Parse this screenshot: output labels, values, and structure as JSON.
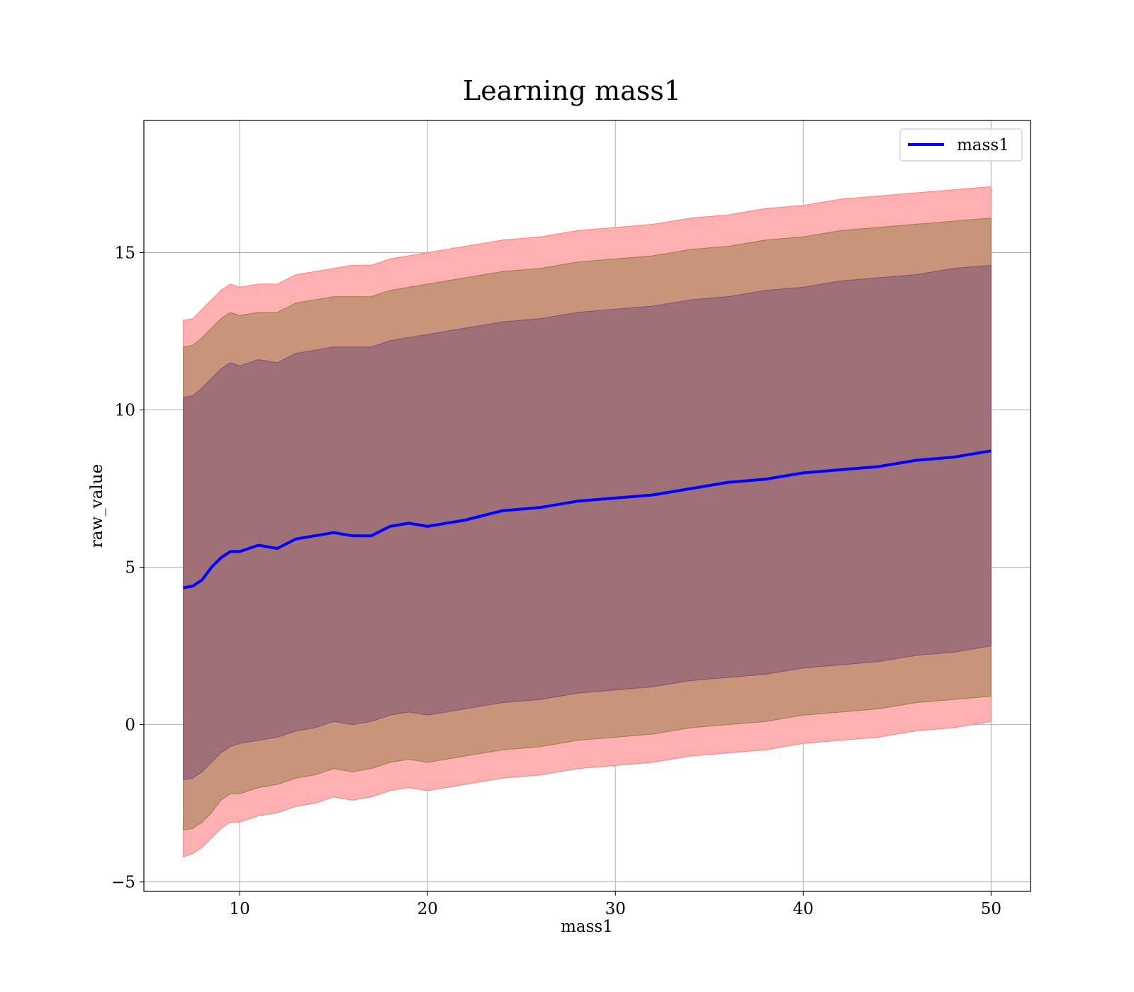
{
  "chart_data": {
    "type": "line",
    "title": "Learning mass1",
    "xlabel": "mass1",
    "ylabel": "raw_value",
    "xlim": [
      4.9,
      52.1
    ],
    "ylim": [
      -5.3,
      19.2
    ],
    "xticks": [
      10,
      20,
      30,
      40,
      50
    ],
    "yticks": [
      -5,
      0,
      5,
      10,
      15
    ],
    "xtick_labels": [
      "10",
      "20",
      "30",
      "40",
      "50"
    ],
    "ytick_labels": [
      "−5",
      "0",
      "5",
      "10",
      "15"
    ],
    "grid": true,
    "legend": {
      "placement": "top-right",
      "entries": [
        "mass1"
      ]
    },
    "colors": {
      "line": "#0000ff",
      "band_outer": "#ff0000",
      "band_middle": "#8b6a45",
      "band_inner": "#6e2e4a",
      "grid": "#b0b0b0"
    },
    "series": [
      {
        "name": "mass1",
        "role": "mean",
        "x": [
          7,
          7.5,
          8,
          8.5,
          9,
          9.5,
          10,
          11,
          12,
          13,
          14,
          15,
          16,
          17,
          18,
          19,
          20,
          22,
          24,
          26,
          28,
          30,
          32,
          34,
          36,
          38,
          40,
          42,
          44,
          46,
          48,
          50
        ],
        "values": [
          4.35,
          4.4,
          4.6,
          5.0,
          5.3,
          5.5,
          5.5,
          5.7,
          5.6,
          5.9,
          6.0,
          6.1,
          6.0,
          6.0,
          6.3,
          6.4,
          6.3,
          6.5,
          6.8,
          6.9,
          7.1,
          7.2,
          7.3,
          7.5,
          7.7,
          7.8,
          8.0,
          8.1,
          8.2,
          8.4,
          8.5,
          8.7
        ]
      }
    ],
    "bands": [
      {
        "level": "outer",
        "x": [
          7,
          7.5,
          8,
          8.5,
          9,
          9.5,
          10,
          11,
          12,
          13,
          14,
          15,
          16,
          17,
          18,
          19,
          20,
          22,
          24,
          26,
          28,
          30,
          32,
          34,
          36,
          38,
          40,
          42,
          44,
          46,
          48,
          50
        ],
        "upper": [
          12.85,
          12.9,
          13.2,
          13.5,
          13.8,
          14.0,
          13.9,
          14.0,
          14.0,
          14.3,
          14.4,
          14.5,
          14.6,
          14.6,
          14.8,
          14.9,
          15.0,
          15.2,
          15.4,
          15.5,
          15.7,
          15.8,
          15.9,
          16.1,
          16.2,
          16.4,
          16.5,
          16.7,
          16.8,
          16.9,
          17.0,
          17.1
        ],
        "lower": [
          -4.2,
          -4.1,
          -3.9,
          -3.6,
          -3.3,
          -3.1,
          -3.1,
          -2.9,
          -2.8,
          -2.6,
          -2.5,
          -2.3,
          -2.4,
          -2.3,
          -2.1,
          -2.0,
          -2.1,
          -1.9,
          -1.7,
          -1.6,
          -1.4,
          -1.3,
          -1.2,
          -1.0,
          -0.9,
          -0.8,
          -0.6,
          -0.5,
          -0.4,
          -0.2,
          -0.1,
          0.1
        ]
      },
      {
        "level": "middle",
        "x": [
          7,
          7.5,
          8,
          8.5,
          9,
          9.5,
          10,
          11,
          12,
          13,
          14,
          15,
          16,
          17,
          18,
          19,
          20,
          22,
          24,
          26,
          28,
          30,
          32,
          34,
          36,
          38,
          40,
          42,
          44,
          46,
          48,
          50
        ],
        "upper": [
          12.0,
          12.05,
          12.3,
          12.6,
          12.9,
          13.1,
          13.0,
          13.1,
          13.1,
          13.4,
          13.5,
          13.6,
          13.6,
          13.6,
          13.8,
          13.9,
          14.0,
          14.2,
          14.4,
          14.5,
          14.7,
          14.8,
          14.9,
          15.1,
          15.2,
          15.4,
          15.5,
          15.7,
          15.8,
          15.9,
          16.0,
          16.1
        ],
        "lower": [
          -3.35,
          -3.3,
          -3.1,
          -2.8,
          -2.4,
          -2.2,
          -2.2,
          -2.0,
          -1.9,
          -1.7,
          -1.6,
          -1.4,
          -1.5,
          -1.4,
          -1.2,
          -1.1,
          -1.2,
          -1.0,
          -0.8,
          -0.7,
          -0.5,
          -0.4,
          -0.3,
          -0.1,
          0.0,
          0.1,
          0.3,
          0.4,
          0.5,
          0.7,
          0.8,
          0.9
        ]
      },
      {
        "level": "inner",
        "x": [
          7,
          7.5,
          8,
          8.5,
          9,
          9.5,
          10,
          11,
          12,
          13,
          14,
          15,
          16,
          17,
          18,
          19,
          20,
          22,
          24,
          26,
          28,
          30,
          32,
          34,
          36,
          38,
          40,
          42,
          44,
          46,
          48,
          50
        ],
        "upper": [
          10.4,
          10.45,
          10.7,
          11.0,
          11.3,
          11.5,
          11.4,
          11.6,
          11.5,
          11.8,
          11.9,
          12.0,
          12.0,
          12.0,
          12.2,
          12.3,
          12.4,
          12.6,
          12.8,
          12.9,
          13.1,
          13.2,
          13.3,
          13.5,
          13.6,
          13.8,
          13.9,
          14.1,
          14.2,
          14.3,
          14.5,
          14.6
        ],
        "lower": [
          -1.75,
          -1.7,
          -1.5,
          -1.2,
          -0.9,
          -0.7,
          -0.6,
          -0.5,
          -0.4,
          -0.2,
          -0.1,
          0.1,
          0.0,
          0.1,
          0.3,
          0.4,
          0.3,
          0.5,
          0.7,
          0.8,
          1.0,
          1.1,
          1.2,
          1.4,
          1.5,
          1.6,
          1.8,
          1.9,
          2.0,
          2.2,
          2.3,
          2.5
        ]
      }
    ]
  }
}
